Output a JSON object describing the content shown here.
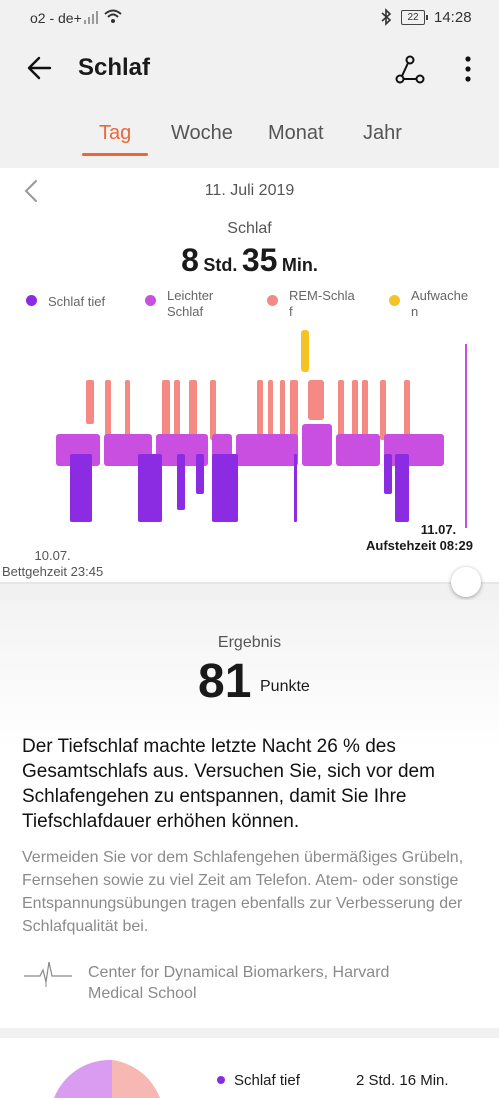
{
  "status_bar": {
    "carrier": "o2 - de+",
    "battery": "22",
    "time": "14:28"
  },
  "header": {
    "title": "Schlaf",
    "icons": [
      "back-arrow-icon",
      "share-icon",
      "more-vert-icon"
    ]
  },
  "tabs": [
    {
      "label": "Tag",
      "active": true
    },
    {
      "label": "Woche",
      "active": false
    },
    {
      "label": "Monat",
      "active": false
    },
    {
      "label": "Jahr",
      "active": false
    }
  ],
  "date": "11. Juli 2019",
  "sleep_summary": {
    "label": "Schlaf",
    "hours": "8",
    "hours_unit": "Std.",
    "minutes": "35",
    "minutes_unit": "Min."
  },
  "legend": [
    {
      "label": "Schlaf tief",
      "color": "#8b2be2"
    },
    {
      "label": "Leichter\nSchlaf",
      "color": "#c94fe0"
    },
    {
      "label": "REM-Schla\nf",
      "color": "#f58a84"
    },
    {
      "label": "Aufwache\nn",
      "color": "#f5c326"
    }
  ],
  "times": {
    "end_date": "11.07.",
    "end_label": "Aufstehzeit 08:29",
    "start_date": "10.07.",
    "start_label": "Bettgehzeit 23:45"
  },
  "result": {
    "label": "Ergebnis",
    "score": "81",
    "unit": "Punkte",
    "main_text": "Der Tiefschlaf machte letzte Nacht 26 % des Gesamtschlafs aus. Versuchen Sie, sich vor dem Schlafengehen zu entspannen, damit Sie Ihre Tiefschlafdauer erhöhen können.",
    "tip_text": "Vermeiden Sie vor dem Schlafengehen übermäßiges Grübeln, Fernsehen sowie zu viel Zeit am Telefon. Atem- oder sonstige Entspannungsübungen tragen ebenfalls zur Verbesserung der Schlafqualität bei.",
    "source": "Center for Dynamical Biomarkers, Harvard Medical School"
  },
  "breakdown": {
    "label": "Schlaf tief",
    "value": "2 Std. 16 Min."
  },
  "colors": {
    "accent": "#e8683b",
    "deep": "#8b2be2",
    "light": "#c94fe0",
    "rem": "#f58a84",
    "awake": "#f5c326"
  }
}
